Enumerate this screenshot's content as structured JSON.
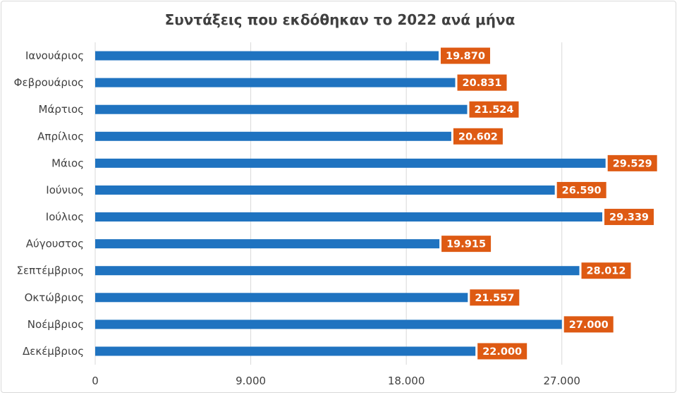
{
  "chart_data": {
    "type": "bar",
    "orientation": "horizontal",
    "title": "Συντάξεις που εκδόθηκαν το 2022 ανά μήνα",
    "categories": [
      "Ιανουάριος",
      "Φεβρουάριος",
      "Μάρτιος",
      "Απρίλιος",
      "Μάιος",
      "Ιούνιος",
      "Ιούλιος",
      "Αύγουστος",
      "Σεπτέμβριος",
      "Οκτώβριος",
      "Νοέμβριος",
      "Δεκέμβριος"
    ],
    "values": [
      19870,
      20831,
      21524,
      20602,
      29529,
      26590,
      29339,
      19915,
      28012,
      21557,
      27000,
      22000
    ],
    "value_labels": [
      "19.870",
      "20.831",
      "21.524",
      "20.602",
      "29.529",
      "26.590",
      "29.339",
      "19.915",
      "28.012",
      "21.557",
      "27.000",
      "22.000"
    ],
    "x_ticks": [
      0,
      9000,
      18000,
      27000
    ],
    "x_tick_labels": [
      "0",
      "9.000",
      "18.000",
      "27.000"
    ],
    "xlim": [
      0,
      31500
    ],
    "grid": "vertical",
    "legend": "none",
    "colors": {
      "bar": "#1f73c0",
      "label_bg": "#de5a13",
      "grid": "#d9d9d9",
      "text": "#404040"
    }
  }
}
